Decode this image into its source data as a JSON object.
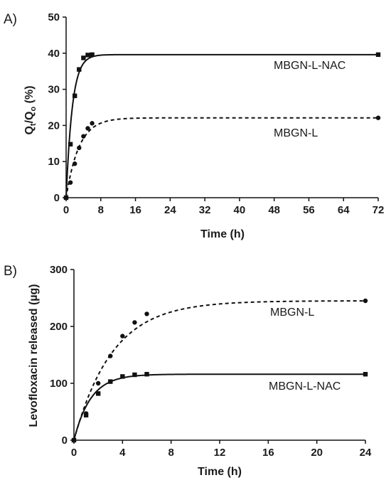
{
  "chart_data": [
    {
      "panel_label": "A)",
      "type": "line",
      "xlabel": "Time (h)",
      "ylabel": {
        "main1": "Q",
        "sub1": "t",
        "mid": "/Q",
        "sub2": "o",
        "tail": " (%)"
      },
      "xlim": [
        0,
        72
      ],
      "ylim": [
        0,
        50
      ],
      "xticks": [
        0,
        8,
        16,
        24,
        32,
        40,
        48,
        56,
        64,
        72
      ],
      "yticks": [
        0,
        10,
        20,
        30,
        40,
        50
      ],
      "series": [
        {
          "name": "MBGN-L-NAC",
          "style": "solid",
          "marker": "square",
          "x": [
            0,
            1,
            2,
            3,
            4,
            5,
            6,
            72
          ],
          "y": [
            0,
            14.8,
            28.2,
            35.5,
            38.7,
            39.5,
            39.6,
            39.6
          ]
        },
        {
          "name": "MBGN-L",
          "style": "dashed",
          "marker": "circle",
          "x": [
            0,
            1,
            2,
            3,
            4,
            5,
            6,
            72
          ],
          "y": [
            0,
            4.2,
            9.4,
            13.8,
            17.0,
            19.2,
            20.6,
            22.1
          ]
        }
      ]
    },
    {
      "panel_label": "B)",
      "type": "line",
      "xlabel": "Time (h)",
      "ylabel": "Levofloxacin released (µg)",
      "xlim": [
        0,
        24
      ],
      "ylim": [
        0,
        300
      ],
      "xticks": [
        0,
        4,
        8,
        12,
        16,
        20,
        24
      ],
      "yticks": [
        0,
        100,
        200,
        300
      ],
      "series": [
        {
          "name": "MBGN-L",
          "style": "dashed",
          "marker": "circle",
          "x": [
            0,
            1,
            2,
            3,
            4,
            5,
            6,
            24
          ],
          "y": [
            0,
            47,
            100,
            148,
            183,
            207,
            222,
            245
          ]
        },
        {
          "name": "MBGN-L-NAC",
          "style": "solid",
          "marker": "square",
          "x": [
            0,
            1,
            2,
            3,
            4,
            5,
            6,
            24
          ],
          "y": [
            0,
            44,
            82,
            103,
            112,
            115,
            116,
            116
          ]
        }
      ]
    }
  ]
}
